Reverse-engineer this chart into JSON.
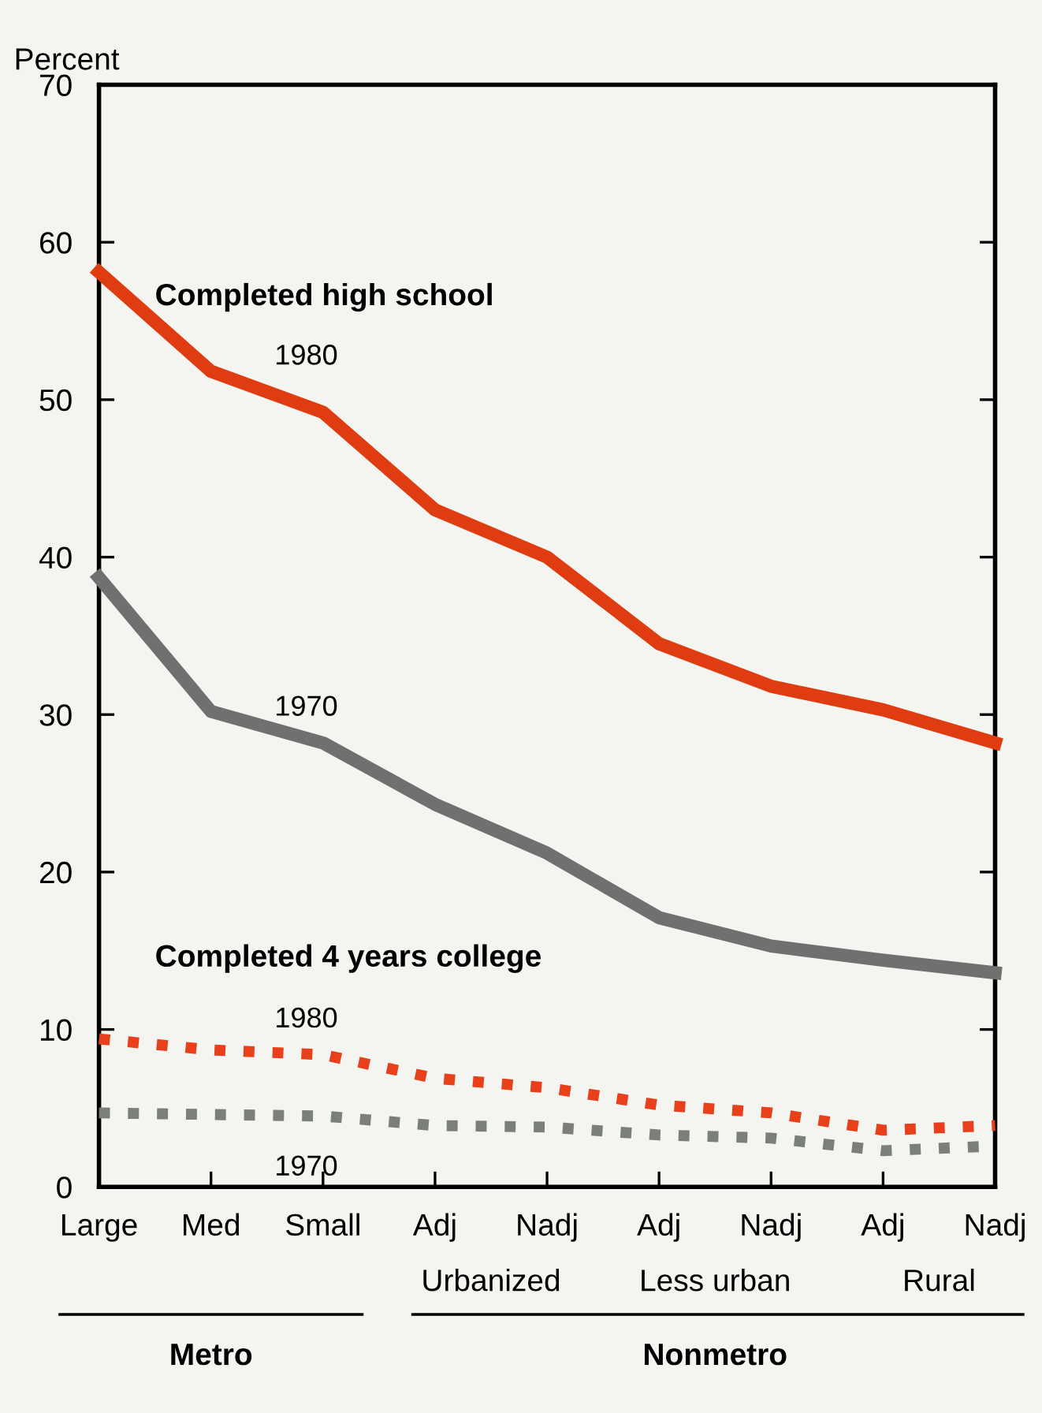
{
  "chart_data": {
    "type": "line",
    "ylabel": "Percent",
    "categories": [
      "Large",
      "Med",
      "Small",
      "Adj",
      "Nadj",
      "Adj",
      "Nadj",
      "Adj",
      "Nadj"
    ],
    "series": [
      {
        "name": "1980",
        "color": "#e03c12",
        "line_style": "solid",
        "values": [
          58.1,
          51.8,
          49.2,
          43.0,
          40.0,
          34.5,
          31.8,
          30.3,
          28.2
        ]
      },
      {
        "name": "1970",
        "color": "#707070",
        "line_style": "solid",
        "values": [
          38.7,
          30.2,
          28.2,
          24.3,
          21.2,
          17.1,
          15.3,
          14.4,
          13.6
        ]
      },
      {
        "name": "1980",
        "color": "#e8401a",
        "line_style": "dotted",
        "values": [
          9.4,
          8.7,
          8.4,
          6.9,
          6.3,
          5.2,
          4.7,
          3.6,
          3.9
        ]
      },
      {
        "name": "1970",
        "color": "#7a8078",
        "line_style": "dotted",
        "values": [
          4.7,
          4.6,
          4.5,
          3.9,
          3.8,
          3.3,
          3.1,
          2.3,
          2.6
        ]
      }
    ],
    "ylim": [
      0,
      70
    ],
    "yticks": [
      0,
      10,
      20,
      30,
      40,
      50,
      60,
      70
    ],
    "grid": false,
    "legend": false,
    "marker": "none",
    "annotations": [
      "Completed high school",
      "Completed 4 years college",
      "Urbanized",
      "Less urban",
      "Rural",
      "Metro",
      "Nonmetro"
    ]
  }
}
